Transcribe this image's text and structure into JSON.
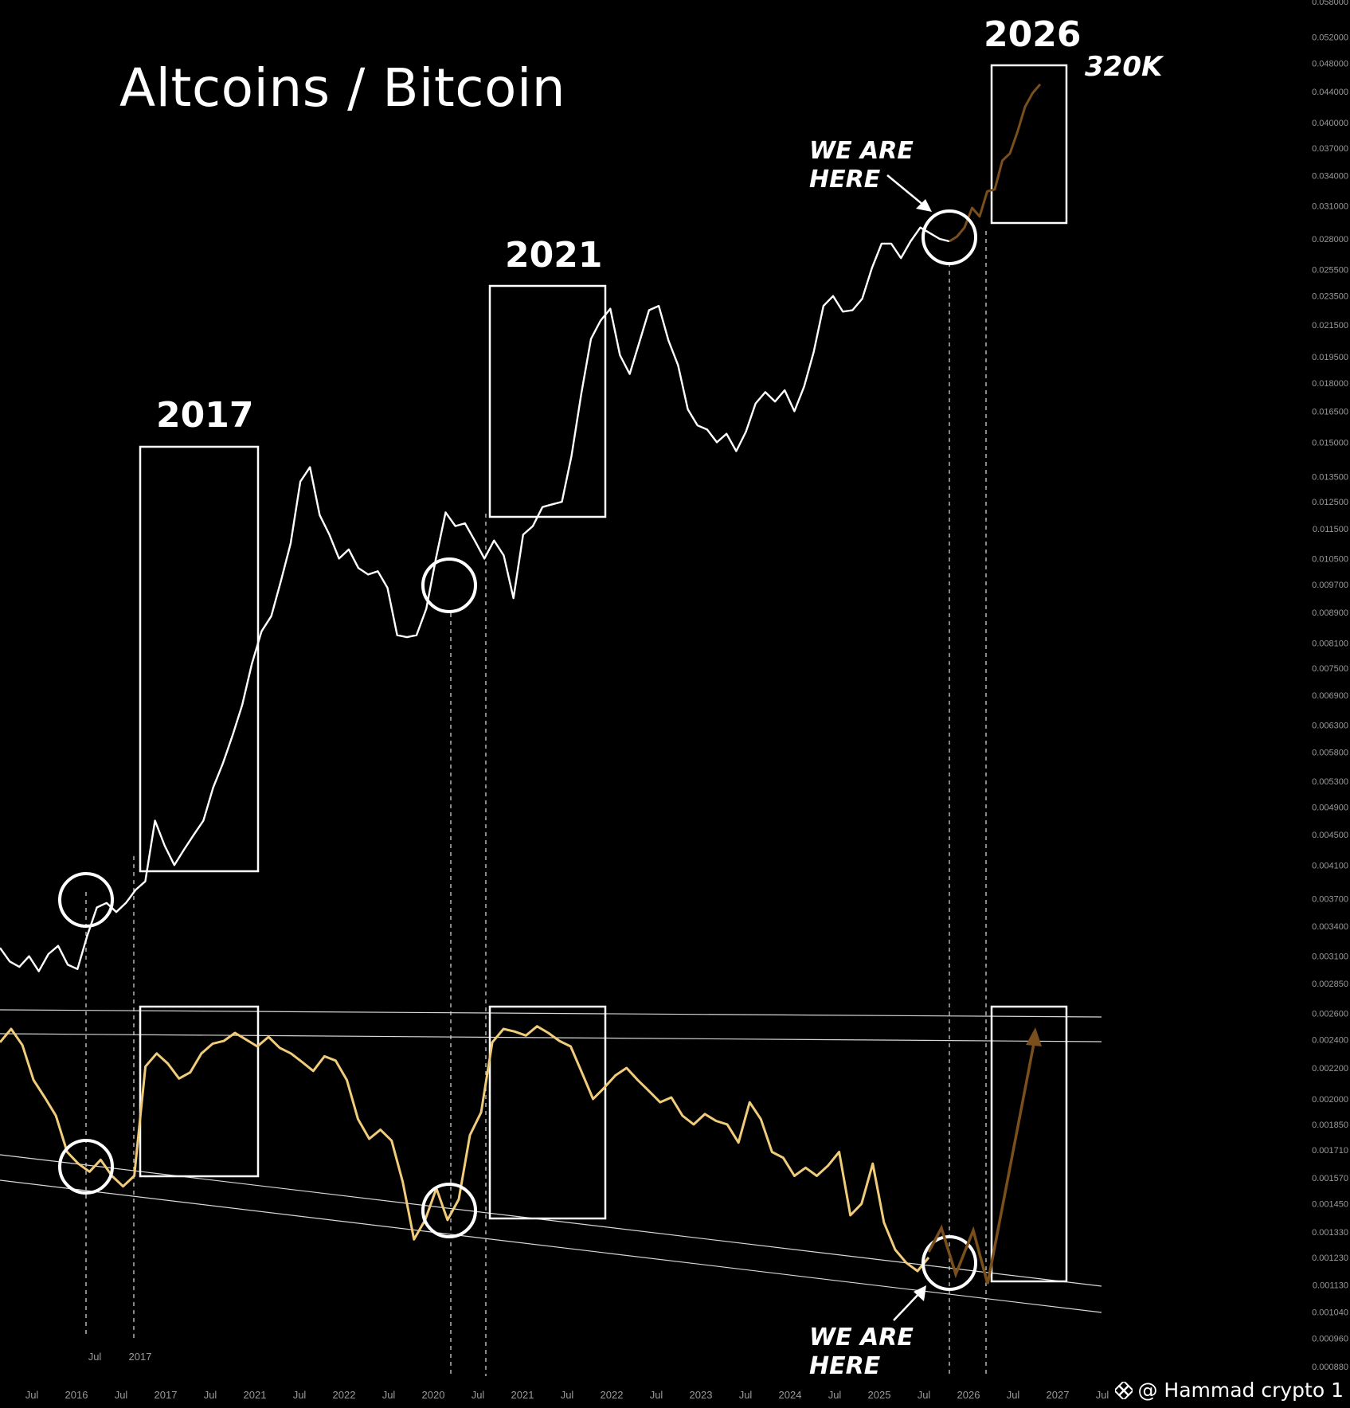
{
  "title": "Altcoins / Bitcoin",
  "annotations": {
    "label_2017": "2017",
    "label_2021": "2021",
    "label_2026": "2026",
    "target": "320K",
    "we_are_here": "WE ARE\nHERE",
    "watermark": "@ Hammad crypto 1"
  },
  "colors": {
    "background": "#000000",
    "price_line": "#ffffff",
    "oscillator_line": "#f0cc7a",
    "projection": "#7a4f1c",
    "axis_text": "#9a9a9a"
  },
  "chart_data": [
    {
      "type": "line",
      "title": "Altcoins / Bitcoin",
      "y_scale": "log",
      "y_ticks": [
        "0.058000",
        "0.052000",
        "0.048000",
        "0.044000",
        "0.040000",
        "0.037000",
        "0.034000",
        "0.031000",
        "0.028000",
        "0.025500",
        "0.023500",
        "0.021500",
        "0.019500",
        "0.018000",
        "0.016500",
        "0.015000",
        "0.013500",
        "0.012500",
        "0.011500",
        "0.010500",
        "0.009700",
        "0.008900",
        "0.008100",
        "0.007500",
        "0.006900",
        "0.006300",
        "0.005800",
        "0.005300",
        "0.004900",
        "0.004500",
        "0.004100",
        "0.003700",
        "0.003400",
        "0.003100",
        "0.002850",
        "0.002600",
        "0.002400",
        "0.002200",
        "0.002000",
        "0.001850",
        "0.001710",
        "0.001570",
        "0.001450",
        "0.001330",
        "0.001230",
        "0.001130",
        "0.001040",
        "0.000960",
        "0.000880"
      ],
      "x_ticks": [
        "Jul",
        "2016",
        "Jul",
        "2017",
        "Jul",
        "2021",
        "Jul",
        "2022",
        "Jul",
        "2020",
        "Jul",
        "2021",
        "Jul",
        "2022",
        "Jul",
        "2023",
        "Jul",
        "2024",
        "Jul",
        "2025",
        "Jul",
        "2026",
        "Jul",
        "2027",
        "Jul"
      ],
      "x_ticks_upper": [
        "Jul",
        "2017"
      ],
      "series": [
        {
          "values": [
            0.00318,
            0.00305,
            0.003,
            0.0031,
            0.00296,
            0.00312,
            0.0032,
            0.00302,
            0.00298,
            0.0033,
            0.0036,
            0.00365,
            0.00355,
            0.00365,
            0.0038,
            0.0039,
            0.0047,
            0.00435,
            0.0041,
            0.0043,
            0.0045,
            0.0047,
            0.0052,
            0.0056,
            0.0061,
            0.0067,
            0.0076,
            0.0084,
            0.0088,
            0.0098,
            0.011,
            0.0133,
            0.0139,
            0.012,
            0.0113,
            0.0105,
            0.0108,
            0.0102,
            0.01,
            0.0101,
            0.0096,
            0.0083,
            0.00825,
            0.0083,
            0.009,
            0.0105,
            0.0121,
            0.0116,
            0.0117,
            0.0111,
            0.0105,
            0.0111,
            0.0106,
            0.0093,
            0.0113,
            0.0116,
            0.0123,
            0.0124,
            0.0125,
            0.0144,
            0.0174,
            0.0206,
            0.0218,
            0.0226,
            0.0196,
            0.0185,
            0.0204,
            0.0225,
            0.0228,
            0.0205,
            0.019,
            0.0166,
            0.0158,
            0.0156,
            0.015,
            0.0154,
            0.0146,
            0.0155,
            0.0169,
            0.0175,
            0.017,
            0.0176,
            0.0165,
            0.0178,
            0.0198,
            0.0228,
            0.0235,
            0.0224,
            0.0225,
            0.0233,
            0.0256,
            0.0276,
            0.0276,
            0.0264,
            0.0278,
            0.029,
            0.0285,
            0.028,
            0.0278
          ]
        },
        {
          "name": "projection",
          "values": [
            0.0278,
            0.0282,
            0.029,
            0.0308,
            0.03,
            0.0324,
            0.0326,
            0.0356,
            0.0364,
            0.0389,
            0.042,
            0.0438,
            0.045
          ]
        }
      ]
    },
    {
      "type": "line",
      "values": [
        0.00238,
        0.00248,
        0.00236,
        0.00212,
        0.00201,
        0.0019,
        0.0017,
        0.00164,
        0.0016,
        0.00166,
        0.00158,
        0.00153,
        0.00158,
        0.00221,
        0.0023,
        0.00223,
        0.00213,
        0.00217,
        0.0023,
        0.00237,
        0.00239,
        0.00245,
        0.0024,
        0.00235,
        0.00242,
        0.00234,
        0.0023,
        0.00224,
        0.00218,
        0.00228,
        0.00225,
        0.00212,
        0.00188,
        0.00177,
        0.00182,
        0.00176,
        0.00155,
        0.0013,
        0.00138,
        0.00152,
        0.00138,
        0.00147,
        0.00179,
        0.00192,
        0.00238,
        0.00248,
        0.00246,
        0.00243,
        0.0025,
        0.00245,
        0.00239,
        0.00235,
        0.00217,
        0.002,
        0.00207,
        0.00215,
        0.0022,
        0.00212,
        0.00205,
        0.00198,
        0.00201,
        0.0019,
        0.00185,
        0.00191,
        0.00187,
        0.00185,
        0.00175,
        0.00198,
        0.00188,
        0.0017,
        0.00167,
        0.00158,
        0.00162,
        0.00158,
        0.00163,
        0.0017,
        0.0014,
        0.00145,
        0.00164,
        0.00137,
        0.00126,
        0.00121,
        0.00118,
        0.00123
      ]
    }
  ]
}
